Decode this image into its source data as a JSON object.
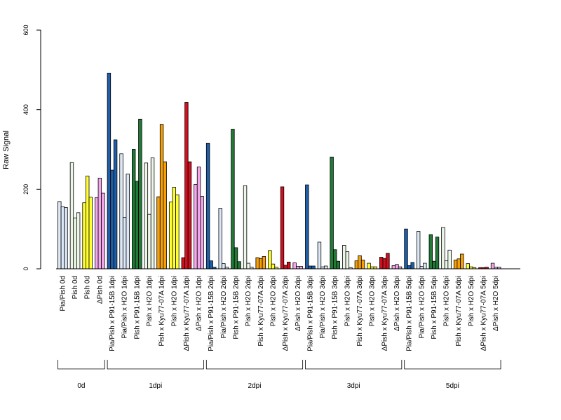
{
  "chart_data": {
    "type": "bar",
    "title": "",
    "xlabel": "",
    "ylabel": "Raw Signal",
    "ylim": [
      0,
      600
    ],
    "yticks": [
      0,
      200,
      400,
      600
    ],
    "grid": false,
    "legend": "none",
    "categories": [
      {
        "label": "Pia/Pish 0d",
        "group": "0d",
        "color": "#dce8f6",
        "values": [
          169,
          156,
          154
        ]
      },
      {
        "label": "Pish 0d",
        "group": "0d",
        "color": "#edf7e7",
        "values": [
          267,
          128,
          141
        ]
      },
      {
        "label": "Pish 0d",
        "group": "0d",
        "color": "#ffff33",
        "values": [
          166,
          233,
          180
        ]
      },
      {
        "label": "ΔPish 0d",
        "group": "0d",
        "color": "#f4a8ec",
        "values": [
          179,
          228,
          190
        ]
      },
      {
        "label": "Pia/Pish x P91-15B 1dpi",
        "group": "1dpi",
        "color": "#1f5fa8",
        "values": [
          492,
          248,
          324
        ]
      },
      {
        "label": "Pia/Pish x H2O 1dpi",
        "group": "1dpi",
        "color": "#dce8f6",
        "values": [
          289,
          129,
          238
        ]
      },
      {
        "label": "Pish x P91-15B 1dpi",
        "group": "1dpi",
        "color": "#217a36",
        "values": [
          300,
          220,
          376
        ]
      },
      {
        "label": "Pish x H2O 1dpi",
        "group": "1dpi",
        "color": "#edf7e7",
        "values": [
          266,
          137,
          279
        ]
      },
      {
        "label": "Pish x Kyu77-07A 1dpi",
        "group": "1dpi",
        "color": "#f5a00a",
        "values": [
          181,
          363,
          269
        ]
      },
      {
        "label": "Pish x H2O 1dpi",
        "group": "1dpi",
        "color": "#ffff33",
        "values": [
          168,
          205,
          186
        ]
      },
      {
        "label": "ΔPish x Kyu77-07A 1dpi",
        "group": "1dpi",
        "color": "#d0101e",
        "values": [
          28,
          418,
          269
        ]
      },
      {
        "label": "ΔPish x H2O 1dpi",
        "group": "1dpi",
        "color": "#f4a8ec",
        "values": [
          212,
          256,
          182
        ]
      },
      {
        "label": "Pia/Pish x P91-15B 2dpi",
        "group": "2dpi",
        "color": "#1f5fa8",
        "values": [
          316,
          20,
          4
        ]
      },
      {
        "label": "Pia/Pish x H2O 2dpi",
        "group": "2dpi",
        "color": "#dce8f6",
        "values": [
          152,
          13,
          4
        ]
      },
      {
        "label": "Pish x P91-15B 2dpi",
        "group": "2dpi",
        "color": "#217a36",
        "values": [
          351,
          53,
          18
        ]
      },
      {
        "label": "Pish x H2O 2dpi",
        "group": "2dpi",
        "color": "#edf7e7",
        "values": [
          209,
          14,
          4
        ]
      },
      {
        "label": "Pish x Kyu77-07A 2dpi",
        "group": "2dpi",
        "color": "#f5a00a",
        "values": [
          28,
          26,
          31
        ]
      },
      {
        "label": "Pish x H2O 2dpi",
        "group": "2dpi",
        "color": "#ffff33",
        "values": [
          46,
          12,
          4
        ]
      },
      {
        "label": "ΔPish x Kyu77-07A 2dpi",
        "group": "2dpi",
        "color": "#d0101e",
        "values": [
          206,
          9,
          17
        ]
      },
      {
        "label": "ΔPish x H2O 2dpi",
        "group": "2dpi",
        "color": "#f4a8ec",
        "values": [
          15,
          6,
          6
        ]
      },
      {
        "label": "Pia/Pish x P91-15B 3dpi",
        "group": "3dpi",
        "color": "#1f5fa8",
        "values": [
          211,
          7,
          7
        ]
      },
      {
        "label": "Pia/Pish x H2O 3dpi",
        "group": "3dpi",
        "color": "#dce8f6",
        "values": [
          67,
          5,
          7
        ]
      },
      {
        "label": "Pish x P91-15B 3dpi",
        "group": "3dpi",
        "color": "#217a36",
        "values": [
          281,
          48,
          19
        ]
      },
      {
        "label": "Pish x H2O 3dpi",
        "group": "3dpi",
        "color": "#edf7e7",
        "values": [
          59,
          43,
          3
        ]
      },
      {
        "label": "Pish x Kyu77-07A 3dpi",
        "group": "3dpi",
        "color": "#f5a00a",
        "values": [
          20,
          33,
          22
        ]
      },
      {
        "label": "Pish x H2O 3dpi",
        "group": "3dpi",
        "color": "#ffff33",
        "values": [
          14,
          5,
          5
        ]
      },
      {
        "label": "ΔPish x Kyu77-07A 3dpi",
        "group": "3dpi",
        "color": "#d0101e",
        "values": [
          29,
          26,
          39
        ]
      },
      {
        "label": "ΔPish x H2O 3dpi",
        "group": "3dpi",
        "color": "#f4a8ec",
        "values": [
          8,
          11,
          5
        ]
      },
      {
        "label": "Pia/Pish x P91-15B 5dpi",
        "group": "5dpi",
        "color": "#1f5fa8",
        "values": [
          100,
          8,
          16
        ]
      },
      {
        "label": "Pia/Pish x H2O 5dpi",
        "group": "5dpi",
        "color": "#dce8f6",
        "values": [
          94,
          6,
          14
        ]
      },
      {
        "label": "Pish x P91-15B 5dpi",
        "group": "5dpi",
        "color": "#217a36",
        "values": [
          86,
          19,
          80
        ]
      },
      {
        "label": "Pish x H2O 5dpi",
        "group": "5dpi",
        "color": "#edf7e7",
        "values": [
          104,
          20,
          47
        ]
      },
      {
        "label": "Pish x Kyu77-07A 5dpi",
        "group": "5dpi",
        "color": "#f5a00a",
        "values": [
          22,
          25,
          37
        ]
      },
      {
        "label": "Pish x H2O 5dpi",
        "group": "5dpi",
        "color": "#ffff33",
        "values": [
          13,
          5,
          3
        ]
      },
      {
        "label": "ΔPish x Kyu77-07A 5dpi",
        "group": "5dpi",
        "color": "#d0101e",
        "values": [
          3,
          3,
          4
        ]
      },
      {
        "label": "ΔPish x H2O 5dpi",
        "group": "5dpi",
        "color": "#f4a8ec",
        "values": [
          14,
          4,
          4
        ]
      }
    ],
    "groups": [
      "0d",
      "1dpi",
      "2dpi",
      "3dpi",
      "5dpi"
    ]
  }
}
